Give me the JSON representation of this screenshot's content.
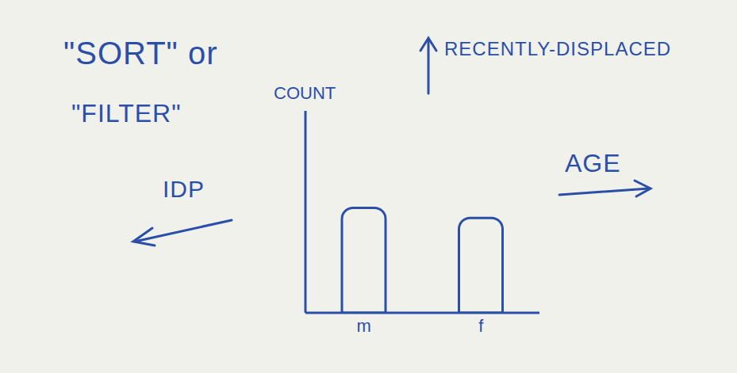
{
  "chart_data": {
    "type": "bar",
    "categories": [
      "m",
      "f"
    ],
    "values": [
      52,
      47
    ],
    "color": "#2b4fa8",
    "ylabel": "COUNT",
    "ylim": [
      0,
      100
    ],
    "tick_labels": "x",
    "grid": false,
    "annotations": [
      "\"SORT\" or",
      "\"FILTER\"",
      "RECENTLY-DISPLACED",
      "IDP",
      "AGE"
    ]
  }
}
